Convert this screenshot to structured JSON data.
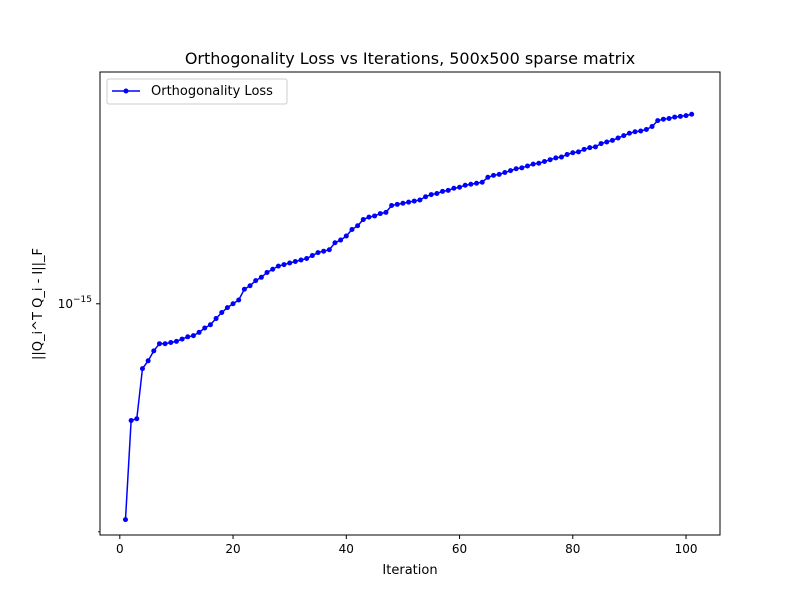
{
  "chart_data": {
    "type": "line",
    "title": "Orthogonality Loss vs Iterations, 500x500 sparse matrix",
    "xlabel": "Iteration",
    "ylabel": "||Q_i^T Q_i - I||_F",
    "xlim": [
      -3.5,
      106
    ],
    "ylim": [
      2.95e-16,
      3.4e-15
    ],
    "yscale": "log",
    "x_ticks": [
      0,
      20,
      40,
      60,
      80,
      100
    ],
    "y_major_tick": {
      "value": 1e-15,
      "label_base": "10",
      "label_exp": "−15"
    },
    "y_minor_ticks": [
      3e-16
    ],
    "legend": {
      "position": "top-left",
      "entries": [
        "Orthogonality Loss"
      ]
    },
    "series": [
      {
        "name": "Orthogonality Loss",
        "color": "#0000ff",
        "marker": "circle",
        "x": [
          1,
          2,
          3,
          4,
          5,
          6,
          7,
          8,
          9,
          10,
          11,
          12,
          13,
          14,
          15,
          16,
          17,
          18,
          19,
          20,
          21,
          22,
          23,
          24,
          25,
          26,
          27,
          28,
          29,
          30,
          31,
          32,
          33,
          34,
          35,
          36,
          37,
          38,
          39,
          40,
          41,
          42,
          43,
          44,
          45,
          46,
          47,
          48,
          49,
          50,
          51,
          52,
          53,
          54,
          55,
          56,
          57,
          58,
          59,
          60,
          61,
          62,
          63,
          64,
          65,
          66,
          67,
          68,
          69,
          70,
          71,
          72,
          73,
          74,
          75,
          76,
          77,
          78,
          79,
          80,
          81,
          82,
          83,
          84,
          85,
          86,
          87,
          88,
          89,
          90,
          91,
          92,
          93,
          94,
          95,
          96,
          97,
          98,
          99,
          100,
          101
        ],
        "y": [
          3.2e-16,
          5.4e-16,
          5.45e-16,
          7.1e-16,
          7.4e-16,
          7.8e-16,
          8.1e-16,
          8.1e-16,
          8.15e-16,
          8.2e-16,
          8.3e-16,
          8.4e-16,
          8.45e-16,
          8.6e-16,
          8.8e-16,
          8.95e-16,
          9.25e-16,
          9.55e-16,
          9.8e-16,
          1e-15,
          1.02e-15,
          1.08e-15,
          1.1e-15,
          1.13e-15,
          1.15e-15,
          1.18e-15,
          1.2e-15,
          1.22e-15,
          1.23e-15,
          1.24e-15,
          1.25e-15,
          1.26e-15,
          1.27e-15,
          1.29e-15,
          1.31e-15,
          1.32e-15,
          1.33e-15,
          1.38e-15,
          1.4e-15,
          1.43e-15,
          1.48e-15,
          1.51e-15,
          1.56e-15,
          1.58e-15,
          1.59e-15,
          1.61e-15,
          1.62e-15,
          1.68e-15,
          1.69e-15,
          1.7e-15,
          1.71e-15,
          1.72e-15,
          1.73e-15,
          1.76e-15,
          1.78e-15,
          1.79e-15,
          1.81e-15,
          1.82e-15,
          1.84e-15,
          1.85e-15,
          1.87e-15,
          1.88e-15,
          1.89e-15,
          1.9e-15,
          1.95e-15,
          1.97e-15,
          1.98e-15,
          2e-15,
          2.02e-15,
          2.04e-15,
          2.05e-15,
          2.07e-15,
          2.09e-15,
          2.1e-15,
          2.12e-15,
          2.14e-15,
          2.16e-15,
          2.17e-15,
          2.2e-15,
          2.22e-15,
          2.23e-15,
          2.26e-15,
          2.28e-15,
          2.29e-15,
          2.33e-15,
          2.35e-15,
          2.37e-15,
          2.4e-15,
          2.43e-15,
          2.46e-15,
          2.48e-15,
          2.49e-15,
          2.51e-15,
          2.55e-15,
          2.63e-15,
          2.65e-15,
          2.66e-15,
          2.68e-15,
          2.69e-15,
          2.7e-15,
          2.72e-15
        ]
      }
    ]
  }
}
